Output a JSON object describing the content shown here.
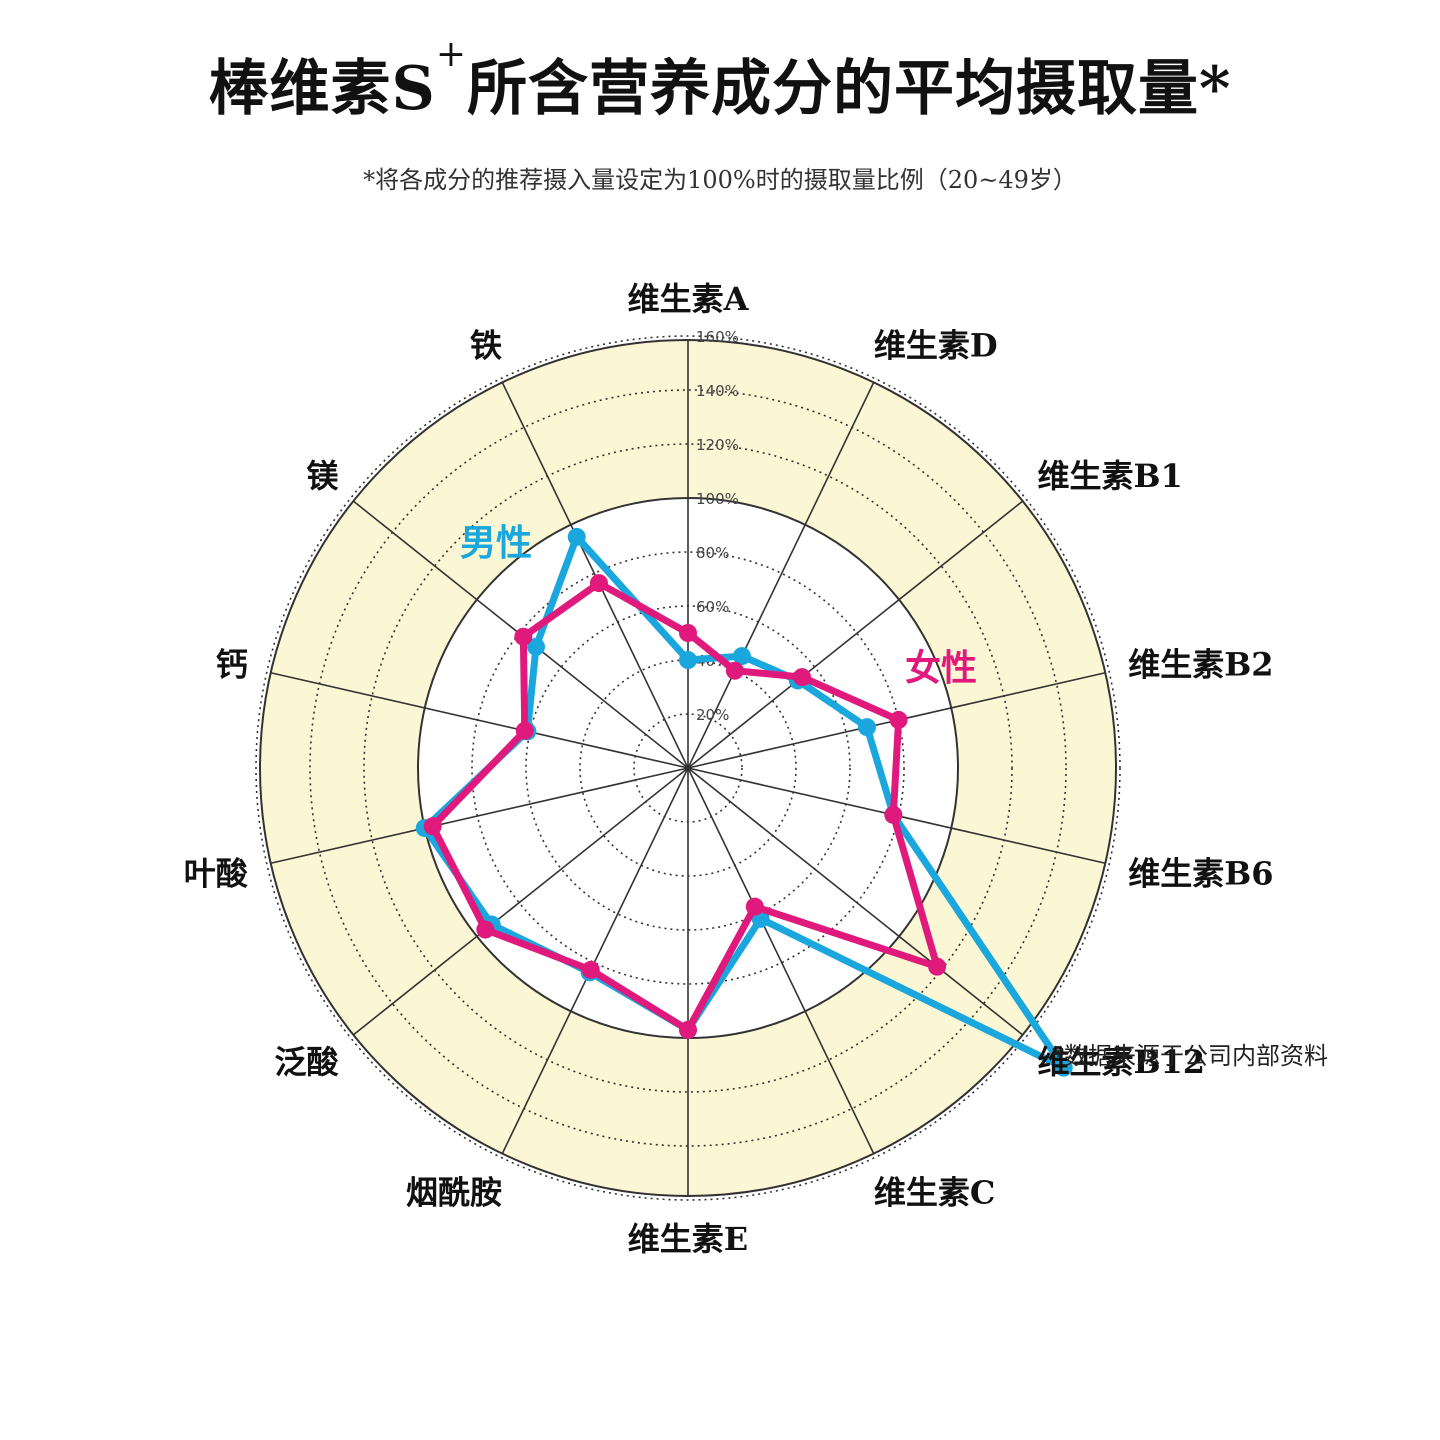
{
  "title": {
    "main": "棒维素S",
    "sup": "+",
    "rest": "所含营养成分的平均摄取量*"
  },
  "subtitle": "*将各成分的推荐摄入量设定为100%时的摄取量比例（20~49岁）",
  "source_note": "*数据来源于公司内部资料",
  "colors": {
    "male": "#1aa7dd",
    "female": "#e0197d",
    "outer_ring": "#fbf6d3",
    "grid": "#333333"
  },
  "chart_data": {
    "type": "radar",
    "title": "棒维素S+所含营养成分的平均摄取量*",
    "categories": [
      "维生素A",
      "维生素D",
      "维生素B1",
      "维生素B2",
      "维生素B6",
      "维生素B12",
      "维生素C",
      "维生素E",
      "烟酰胺",
      "泛酸",
      "叶酸",
      "钙",
      "镁",
      "铁"
    ],
    "tick_labels": [
      "20%",
      "40%",
      "60%",
      "80%",
      "100%",
      "120%",
      "140%",
      "160%"
    ],
    "rmax": 160,
    "series": [
      {
        "name": "男性",
        "values": [
          40,
          46,
          52,
          68,
          78,
          178,
          62,
          97,
          84,
          93,
          100,
          61,
          72,
          95
        ]
      },
      {
        "name": "女性",
        "values": [
          50,
          40,
          54,
          80,
          78,
          118,
          57,
          97,
          83,
          96,
          97,
          62,
          78,
          76
        ]
      }
    ]
  }
}
